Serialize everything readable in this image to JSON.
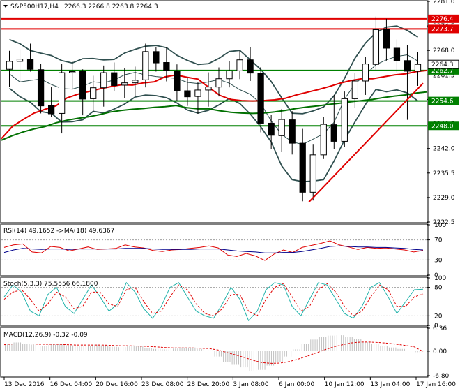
{
  "chart_data": [
    {
      "type": "line",
      "title": "S&P500H17,H4",
      "ohlc_label": "2266.3 2266.8 2263.8 2264.3",
      "ylim": [
        2222.5,
        2281.0
      ],
      "y_ticks": [
        "2281.0",
        "2274.5",
        "2268.0",
        "2261.5",
        "2255.0",
        "2248.5",
        "2242.0",
        "2235.5",
        "2229.0",
        "2222.5"
      ],
      "x_ticks": [
        "13 Dec 2016",
        "16 Dec 04:00",
        "20 Dec 16:00",
        "23 Dec 08:00",
        "28 Dec 20:00",
        "3 Jan 08:00",
        "6 Jan 00:00",
        "10 Jan 12:00",
        "13 Jan 04:00",
        "17 Jan 16:00"
      ],
      "horizontal_levels": [
        {
          "value": 2276.4,
          "label": "2276.4",
          "color": "#e00000"
        },
        {
          "value": 2273.7,
          "label": "2273.7",
          "color": "#e00000"
        },
        {
          "value": 2262.7,
          "label": "2262.7",
          "color": "#008000"
        },
        {
          "value": 2254.6,
          "label": "2254.6",
          "color": "#008000"
        },
        {
          "value": 2248.0,
          "label": "2248.0",
          "color": "#008000"
        }
      ],
      "current_price": {
        "value": 2264.3,
        "label": "2264.3"
      },
      "trendline": {
        "from": [
          28.6,
          2227.8
        ],
        "to": [
          39.5,
          2259.3
        ],
        "color": "#e00000"
      },
      "series": [
        {
          "values": [
            2244.6,
            2247.8,
            2249.7,
            2251.4,
            2252.4,
            2253.3,
            2255.4,
            2256.4,
            2257.1,
            2257.8,
            2258.4,
            2258.9,
            2258.8,
            2259.4,
            2259.7,
            2261.0,
            2261.5,
            2260.9,
            2260.4,
            2258.2,
            2256.1,
            2255.0,
            2254.7,
            2254.6,
            2254.7,
            2254.9,
            2255.3,
            2256.2,
            2256.9,
            2257.6,
            2258.4,
            2259.3,
            2260.0,
            2260.5,
            2260.5,
            2261.0,
            2261.5,
            2261.8,
            2262.4,
            2262.7
          ],
          "color": "#e00000"
        },
        {
          "values": [
            2244.2,
            2245.4,
            2246.4,
            2247.2,
            2247.8,
            2248.8,
            2249.5,
            2250.0,
            2250.4,
            2251.0,
            2251.7,
            2252.1,
            2252.4,
            2252.6,
            2252.9,
            2253.1,
            2253.4,
            2252.8,
            2252.5,
            2252.5,
            2252.0,
            2251.6,
            2251.4,
            2251.3,
            2251.4,
            2251.7,
            2252.1,
            2252.6,
            2253.0,
            2253.3,
            2253.7,
            2254.0,
            2254.4,
            2254.7,
            2255.0,
            2255.5,
            2255.9,
            2256.2,
            2256.7,
            2257.0
          ],
          "color": "#007000"
        }
      ],
      "candles": [
        {
          "o": 2263.0,
          "h": 2267.9,
          "l": 2258.3,
          "c": 2265.1
        },
        {
          "o": 2265.1,
          "h": 2268.3,
          "l": 2259.8,
          "c": 2265.7
        },
        {
          "o": 2265.7,
          "h": 2269.8,
          "l": 2262.4,
          "c": 2263.0
        },
        {
          "o": 2262.9,
          "h": 2264.4,
          "l": 2251.3,
          "c": 2253.3
        },
        {
          "o": 2253.4,
          "h": 2258.4,
          "l": 2250.4,
          "c": 2251.2
        },
        {
          "o": 2251.3,
          "h": 2264.5,
          "l": 2246.0,
          "c": 2262.1
        },
        {
          "o": 2262.1,
          "h": 2265.2,
          "l": 2257.6,
          "c": 2262.4
        },
        {
          "o": 2262.4,
          "h": 2263.0,
          "l": 2250.8,
          "c": 2255.1
        },
        {
          "o": 2255.2,
          "h": 2261.3,
          "l": 2251.6,
          "c": 2258.1
        },
        {
          "o": 2258.1,
          "h": 2264.0,
          "l": 2253.1,
          "c": 2262.1
        },
        {
          "o": 2262.1,
          "h": 2264.8,
          "l": 2257.2,
          "c": 2258.7
        },
        {
          "o": 2258.8,
          "h": 2263.3,
          "l": 2255.4,
          "c": 2259.4
        },
        {
          "o": 2259.4,
          "h": 2263.7,
          "l": 2256.0,
          "c": 2260.1
        },
        {
          "o": 2260.2,
          "h": 2269.8,
          "l": 2258.2,
          "c": 2267.7
        },
        {
          "o": 2267.7,
          "h": 2268.9,
          "l": 2262.4,
          "c": 2264.7
        },
        {
          "o": 2264.8,
          "h": 2268.9,
          "l": 2259.8,
          "c": 2262.6
        },
        {
          "o": 2262.5,
          "h": 2264.3,
          "l": 2254.6,
          "c": 2257.4
        },
        {
          "o": 2257.3,
          "h": 2260.8,
          "l": 2253.3,
          "c": 2255.7
        },
        {
          "o": 2255.8,
          "h": 2259.6,
          "l": 2251.2,
          "c": 2257.5
        },
        {
          "o": 2257.5,
          "h": 2262.2,
          "l": 2253.1,
          "c": 2258.3
        },
        {
          "o": 2258.3,
          "h": 2263.5,
          "l": 2255.8,
          "c": 2260.5
        },
        {
          "o": 2260.5,
          "h": 2265.2,
          "l": 2258.2,
          "c": 2262.6
        },
        {
          "o": 2262.6,
          "h": 2267.9,
          "l": 2260.4,
          "c": 2265.5
        },
        {
          "o": 2265.5,
          "h": 2268.8,
          "l": 2259.9,
          "c": 2262.0
        },
        {
          "o": 2262.0,
          "h": 2263.6,
          "l": 2246.3,
          "c": 2248.7
        },
        {
          "o": 2248.7,
          "h": 2251.0,
          "l": 2241.9,
          "c": 2245.5
        },
        {
          "o": 2245.4,
          "h": 2252.5,
          "l": 2241.2,
          "c": 2249.7
        },
        {
          "o": 2249.6,
          "h": 2251.9,
          "l": 2240.4,
          "c": 2243.4
        },
        {
          "o": 2243.4,
          "h": 2247.2,
          "l": 2228.0,
          "c": 2230.4
        },
        {
          "o": 2230.4,
          "h": 2243.2,
          "l": 2228.2,
          "c": 2240.3
        },
        {
          "o": 2240.3,
          "h": 2250.3,
          "l": 2239.2,
          "c": 2248.4
        },
        {
          "o": 2248.3,
          "h": 2256.2,
          "l": 2241.9,
          "c": 2243.9
        },
        {
          "o": 2243.9,
          "h": 2257.1,
          "l": 2242.4,
          "c": 2255.2
        },
        {
          "o": 2255.2,
          "h": 2262.1,
          "l": 2252.7,
          "c": 2259.9
        },
        {
          "o": 2259.9,
          "h": 2266.2,
          "l": 2256.2,
          "c": 2264.4
        },
        {
          "o": 2264.3,
          "h": 2277.0,
          "l": 2262.9,
          "c": 2273.5
        },
        {
          "o": 2273.6,
          "h": 2276.4,
          "l": 2265.3,
          "c": 2268.6
        },
        {
          "o": 2268.6,
          "h": 2270.9,
          "l": 2262.2,
          "c": 2265.3
        },
        {
          "o": 2265.3,
          "h": 2269.5,
          "l": 2249.6,
          "c": 2262.5
        },
        {
          "o": 2262.5,
          "h": 2267.6,
          "l": 2258.6,
          "c": 2264.3
        }
      ]
    },
    {
      "type": "line",
      "title": "RSI(14) 49.1652 ->MA(18) 49.6367",
      "ylim": [
        0,
        100
      ],
      "y_ticks": [
        "100",
        "70",
        "30",
        "0"
      ],
      "series": [
        {
          "values": [
            55,
            60,
            62,
            46,
            44,
            57,
            55,
            48,
            52,
            56,
            51,
            52,
            53,
            60,
            56,
            54,
            49,
            47,
            50,
            51,
            53,
            55,
            58,
            54,
            40,
            37,
            43,
            38,
            29,
            42,
            50,
            45,
            55,
            59,
            63,
            68,
            60,
            56,
            51,
            55,
            53,
            54,
            52,
            50,
            46,
            49
          ],
          "color": "#e00000"
        },
        {
          "values": [
            45,
            50,
            53,
            52,
            51,
            52,
            52,
            51,
            52,
            52,
            52,
            52,
            52,
            53,
            53,
            53,
            52,
            51,
            51,
            51,
            51,
            52,
            52,
            52,
            50,
            48,
            47,
            46,
            44,
            44,
            45,
            45,
            47,
            50,
            53,
            57,
            58,
            57,
            56,
            56,
            55,
            55,
            54,
            53,
            51,
            50
          ],
          "color": "#00008b"
        }
      ]
    },
    {
      "type": "line",
      "title": "Stoch(5,3,3) 75.5556 66.1800",
      "ylim": [
        0,
        100
      ],
      "y_ticks": [
        "100",
        "80",
        "20",
        "0"
      ],
      "series": [
        {
          "values": [
            60,
            85,
            70,
            30,
            20,
            65,
            80,
            40,
            25,
            55,
            85,
            60,
            30,
            45,
            90,
            70,
            35,
            15,
            40,
            80,
            90,
            60,
            30,
            20,
            15,
            45,
            80,
            55,
            10,
            30,
            75,
            90,
            85,
            40,
            20,
            55,
            90,
            85,
            55,
            25,
            15,
            40,
            80,
            90,
            60,
            25,
            50,
            75,
            76
          ],
          "color": "#20b2aa"
        },
        {
          "values": [
            55,
            70,
            75,
            55,
            30,
            45,
            70,
            60,
            35,
            40,
            70,
            70,
            45,
            40,
            75,
            80,
            50,
            25,
            30,
            60,
            85,
            75,
            45,
            25,
            20,
            35,
            65,
            65,
            30,
            20,
            55,
            80,
            88,
            60,
            30,
            40,
            75,
            88,
            70,
            40,
            20,
            30,
            60,
            85,
            75,
            40,
            40,
            60,
            66
          ],
          "color": "#e00000"
        }
      ]
    },
    {
      "type": "bar",
      "title": "MACD(12,26,9) -0.32 -0.09",
      "ylim": [
        -6.8,
        6.36
      ],
      "y_ticks": [
        "6.36",
        "0.00",
        "-6.80"
      ],
      "values": [
        2.1,
        2.4,
        2.0,
        1.8,
        1.5,
        1.8,
        2.0,
        1.6,
        1.3,
        1.5,
        1.8,
        1.6,
        1.2,
        1.1,
        1.4,
        1.3,
        0.9,
        0.6,
        0.5,
        0.7,
        1.0,
        1.0,
        0.6,
        0.2,
        -1.5,
        -3.0,
        -3.8,
        -4.5,
        -5.5,
        -5.2,
        -4.0,
        -3.0,
        -1.5,
        0.5,
        2.0,
        3.2,
        4.0,
        4.3,
        4.4,
        4.0,
        3.3,
        2.5,
        1.9,
        1.4,
        1.0,
        0.6,
        0.1,
        -0.3
      ],
      "signal": [
        1.8,
        2.0,
        2.0,
        2.0,
        1.9,
        1.9,
        1.9,
        1.8,
        1.7,
        1.7,
        1.7,
        1.7,
        1.6,
        1.5,
        1.5,
        1.4,
        1.3,
        1.2,
        1.0,
        0.9,
        0.9,
        0.9,
        0.8,
        0.7,
        0.3,
        -0.4,
        -1.1,
        -1.8,
        -2.6,
        -3.2,
        -3.4,
        -3.3,
        -2.9,
        -2.2,
        -1.4,
        -0.5,
        0.4,
        1.2,
        1.8,
        2.3,
        2.5,
        2.5,
        2.4,
        2.2,
        1.9,
        1.6,
        1.2,
        -0.1
      ],
      "series": [
        {
          "name": "MACD",
          "color": "#c0c0c0"
        },
        {
          "name": "Signal",
          "color": "#e00000"
        }
      ]
    }
  ]
}
